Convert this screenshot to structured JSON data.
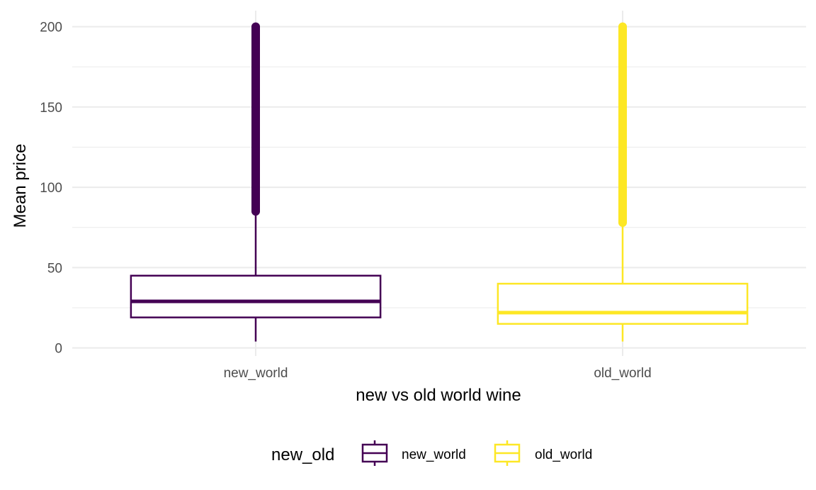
{
  "chart_data": {
    "type": "boxplot",
    "title": "",
    "xlabel": "new vs old world wine",
    "ylabel": "Mean price",
    "ylim": [
      -5,
      210
    ],
    "yticks": [
      0,
      50,
      100,
      150,
      200
    ],
    "grid": true,
    "categories": [
      "new_world",
      "old_world"
    ],
    "boxes": [
      {
        "category": "new_world",
        "color": "#440154",
        "min": 4,
        "q1": 19,
        "median": 29,
        "q3": 45,
        "whisker_high": 84,
        "outliers_from": 85,
        "outliers_to": 200
      },
      {
        "category": "old_world",
        "color": "#FDE725",
        "min": 4,
        "q1": 15,
        "median": 22,
        "q3": 40,
        "whisker_high": 77,
        "outliers_from": 78,
        "outliers_to": 200
      }
    ],
    "legend": {
      "position": "bottom",
      "title": "new_old",
      "entries": [
        {
          "label": "new_world",
          "color": "#440154"
        },
        {
          "label": "old_world",
          "color": "#FDE725"
        }
      ]
    }
  }
}
